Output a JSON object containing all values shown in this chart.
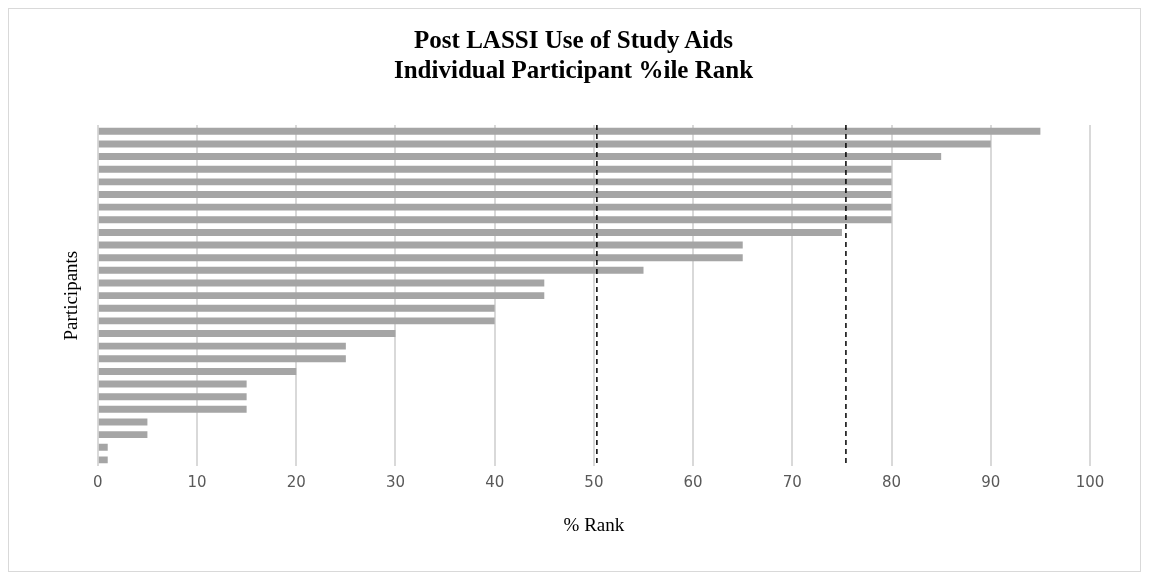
{
  "chart_data": {
    "type": "bar",
    "orientation": "horizontal",
    "title": "Post LASSI Use of Study Aids\nIndividual Participant %ile Rank",
    "xlabel": "% Rank",
    "ylabel": "Participants",
    "categories": [
      null,
      null,
      null,
      null,
      null,
      null,
      null,
      null,
      null,
      null,
      null,
      null,
      null,
      null,
      null,
      null,
      null,
      null,
      null,
      null,
      null,
      null,
      null,
      null,
      null,
      null,
      null
    ],
    "values": [
      95,
      90,
      85,
      80,
      80,
      80,
      80,
      80,
      75,
      65,
      65,
      55,
      45,
      45,
      40,
      40,
      30,
      25,
      25,
      20,
      15,
      15,
      15,
      5,
      5,
      1,
      1
    ],
    "color": "#a5a5a5",
    "xlim": [
      0,
      100
    ],
    "xticks": [
      0,
      10,
      20,
      30,
      40,
      50,
      60,
      70,
      80,
      90,
      100
    ],
    "grid": "x",
    "tick_labels": "x",
    "ref_lines": [
      {
        "axis": "x",
        "value": 50.3,
        "color": "#000000",
        "line_style": "dashed"
      },
      {
        "axis": "x",
        "value": 75.4,
        "color": "#000000",
        "line_style": "dashed"
      }
    ]
  }
}
